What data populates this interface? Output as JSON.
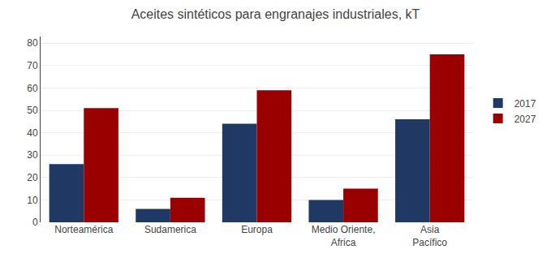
{
  "chart_data": {
    "type": "bar",
    "title": "Aceites sintéticos para engranajes industriales, kT",
    "categories": [
      "Norteamérica",
      "Sudamerica",
      "Europa",
      "Medio Oriente,\nAfrica",
      "Asia\nPacífico"
    ],
    "series": [
      {
        "name": "2017",
        "color": "#1F3864",
        "values": [
          26,
          6,
          44,
          10,
          46
        ]
      },
      {
        "name": "2027",
        "color": "#9B0000",
        "values": [
          51,
          11,
          59,
          15,
          75
        ]
      }
    ],
    "ylim": [
      0,
      83
    ],
    "yticks": [
      0,
      10,
      20,
      30,
      40,
      50,
      60,
      70,
      80
    ],
    "grid": true,
    "legend": "right"
  }
}
